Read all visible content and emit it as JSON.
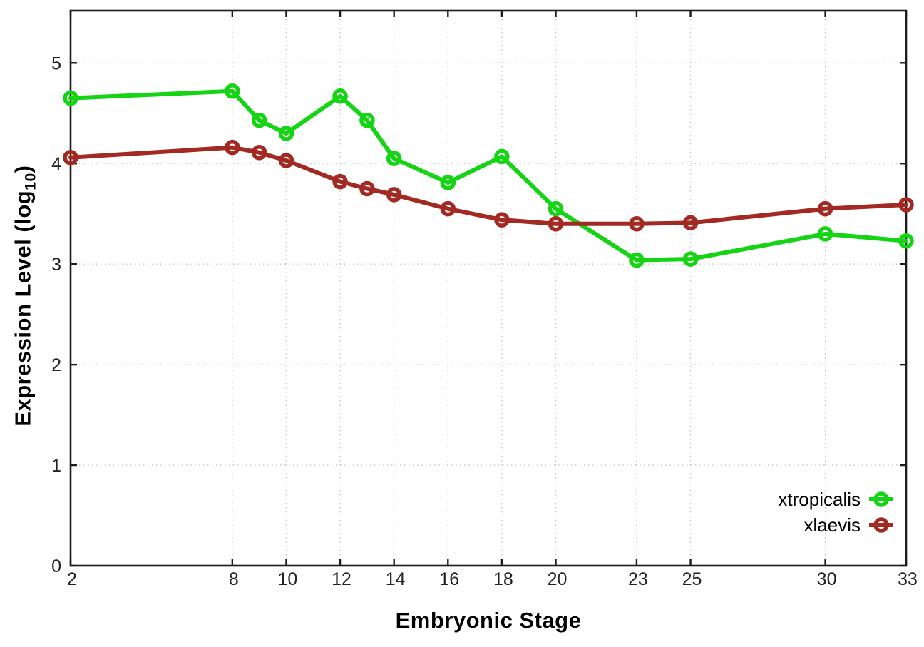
{
  "figure": {
    "xlabel": "Embryonic Stage",
    "ylabel_prefix": "Expression Level (log",
    "ylabel_sub": "10",
    "ylabel_suffix": ")"
  },
  "chart_data": {
    "type": "line",
    "title": "",
    "xlabel": "Embryonic Stage",
    "ylabel": "Expression Level (log10)",
    "x": [
      2,
      8,
      9,
      10,
      12,
      13,
      14,
      16,
      18,
      20,
      23,
      25,
      30,
      33
    ],
    "xticks": [
      2,
      8,
      10,
      12,
      14,
      16,
      18,
      20,
      23,
      25,
      30,
      33
    ],
    "yticks": [
      0,
      1,
      2,
      3,
      4,
      5
    ],
    "xlim": [
      2,
      33
    ],
    "ylim": [
      0,
      5.52
    ],
    "grid": true,
    "legend_position": "bottom-right",
    "series": [
      {
        "name": "xtropicalis",
        "color": "#14d414",
        "marker": "open-circle",
        "values": [
          4.65,
          4.72,
          4.43,
          4.3,
          4.67,
          4.43,
          4.05,
          3.81,
          4.07,
          3.55,
          3.04,
          3.05,
          3.3,
          3.23
        ]
      },
      {
        "name": "xlaevis",
        "color": "#a32a23",
        "marker": "open-circle",
        "values": [
          4.06,
          4.16,
          4.11,
          4.03,
          3.82,
          3.75,
          3.69,
          3.55,
          3.44,
          3.4,
          3.4,
          3.41,
          3.55,
          3.59
        ]
      }
    ]
  },
  "style": {
    "background": "#ffffff",
    "grid_color": "#c6c6c6",
    "border_color": "#1c1c1c",
    "tick_label_color": "#232323"
  }
}
